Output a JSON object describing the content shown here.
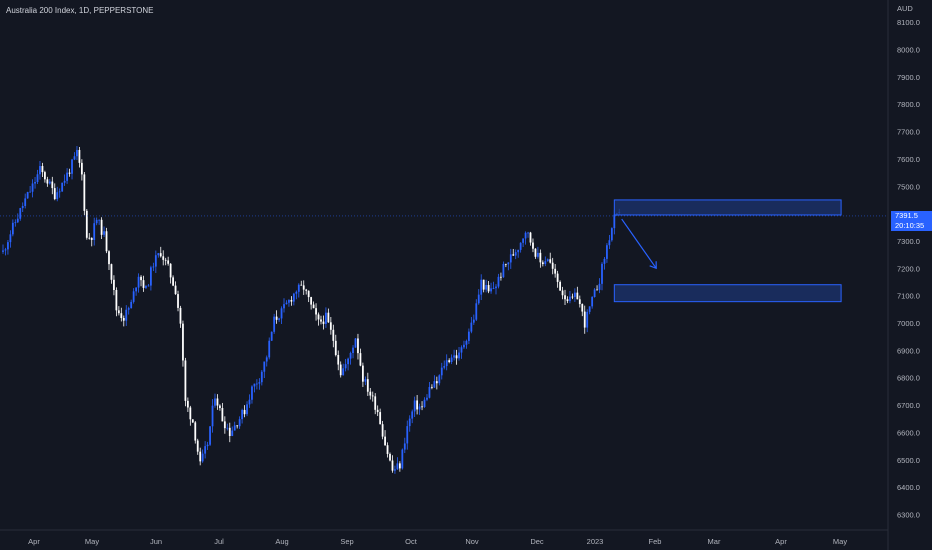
{
  "header": {
    "title": "Australia 200 Index, 1D, PEPPERSTONE",
    "currency": "AUD"
  },
  "price_tag": {
    "price": "7391.5",
    "countdown": "20:10:35"
  },
  "colors": {
    "background": "#131722",
    "up": "#2962ff",
    "down": "#ffffff",
    "zone_fill": "#1c3470",
    "zone_stroke": "#2962ff",
    "arrow": "#2962ff",
    "price_line": "#2962ff"
  },
  "chart_data": {
    "type": "candlestick",
    "y_axis": {
      "ticks": [
        8100.0,
        8000.0,
        7900.0,
        7800.0,
        7700.0,
        7600.0,
        7500.0,
        7400.0,
        7300.0,
        7200.0,
        7100.0,
        7000.0,
        6900.0,
        6800.0,
        6700.0,
        6600.0,
        6500.0,
        6400.0,
        6300.0
      ],
      "range": [
        6260,
        8150
      ]
    },
    "x_axis": {
      "ticks": [
        "Apr",
        "May",
        "Jun",
        "Jul",
        "Aug",
        "Sep",
        "Oct",
        "Nov",
        "Dec",
        "2023",
        "Feb",
        "Mar",
        "Apr",
        "May"
      ]
    },
    "close_path": [
      [
        0,
        7260
      ],
      [
        3,
        7330
      ],
      [
        6,
        7390
      ],
      [
        9,
        7450
      ],
      [
        12,
        7500
      ],
      [
        15,
        7560
      ],
      [
        18,
        7520
      ],
      [
        21,
        7470
      ],
      [
        24,
        7510
      ],
      [
        27,
        7560
      ],
      [
        30,
        7620
      ],
      [
        32,
        7540
      ],
      [
        34,
        7310
      ],
      [
        36,
        7320
      ],
      [
        38,
        7380
      ],
      [
        41,
        7320
      ],
      [
        43,
        7230
      ],
      [
        46,
        7050
      ],
      [
        49,
        7020
      ],
      [
        52,
        7070
      ],
      [
        55,
        7180
      ],
      [
        58,
        7120
      ],
      [
        61,
        7220
      ],
      [
        64,
        7260
      ],
      [
        67,
        7200
      ],
      [
        70,
        7120
      ],
      [
        72,
        7000
      ],
      [
        74,
        6710
      ],
      [
        77,
        6640
      ],
      [
        80,
        6480
      ],
      [
        83,
        6560
      ],
      [
        86,
        6740
      ],
      [
        89,
        6650
      ],
      [
        92,
        6600
      ],
      [
        95,
        6640
      ],
      [
        98,
        6680
      ],
      [
        101,
        6760
      ],
      [
        104,
        6800
      ],
      [
        107,
        6880
      ],
      [
        110,
        7010
      ],
      [
        113,
        7040
      ],
      [
        116,
        7080
      ],
      [
        119,
        7120
      ],
      [
        122,
        7130
      ],
      [
        125,
        7060
      ],
      [
        128,
        7000
      ],
      [
        131,
        7020
      ],
      [
        134,
        6940
      ],
      [
        137,
        6820
      ],
      [
        140,
        6860
      ],
      [
        143,
        6950
      ],
      [
        146,
        6800
      ],
      [
        149,
        6740
      ],
      [
        152,
        6680
      ],
      [
        155,
        6560
      ],
      [
        158,
        6460
      ],
      [
        161,
        6480
      ],
      [
        164,
        6620
      ],
      [
        167,
        6700
      ],
      [
        170,
        6690
      ],
      [
        173,
        6760
      ],
      [
        176,
        6780
      ],
      [
        179,
        6850
      ],
      [
        182,
        6880
      ],
      [
        185,
        6880
      ],
      [
        188,
        6950
      ],
      [
        191,
        7020
      ],
      [
        194,
        7150
      ],
      [
        197,
        7110
      ],
      [
        200,
        7140
      ],
      [
        203,
        7200
      ],
      [
        206,
        7240
      ],
      [
        209,
        7280
      ],
      [
        212,
        7340
      ],
      [
        215,
        7280
      ],
      [
        218,
        7220
      ],
      [
        221,
        7240
      ],
      [
        224,
        7170
      ],
      [
        227,
        7110
      ],
      [
        230,
        7080
      ],
      [
        233,
        7100
      ],
      [
        236,
        7000
      ],
      [
        239,
        7080
      ],
      [
        242,
        7160
      ],
      [
        245,
        7280
      ],
      [
        248,
        7380
      ],
      [
        250,
        7392
      ]
    ],
    "annotations": [
      {
        "type": "supply-zone",
        "y_range": [
          7395,
          7450
        ],
        "x_start_day": 248,
        "x_end_day": 340
      },
      {
        "type": "demand-zone",
        "y_range": [
          7078,
          7140
        ],
        "x_start_day": 248,
        "x_end_day": 340
      },
      {
        "type": "arrow",
        "from": [
          251,
          7380
        ],
        "to": [
          265,
          7200
        ]
      }
    ],
    "last_price": 7391.5
  }
}
